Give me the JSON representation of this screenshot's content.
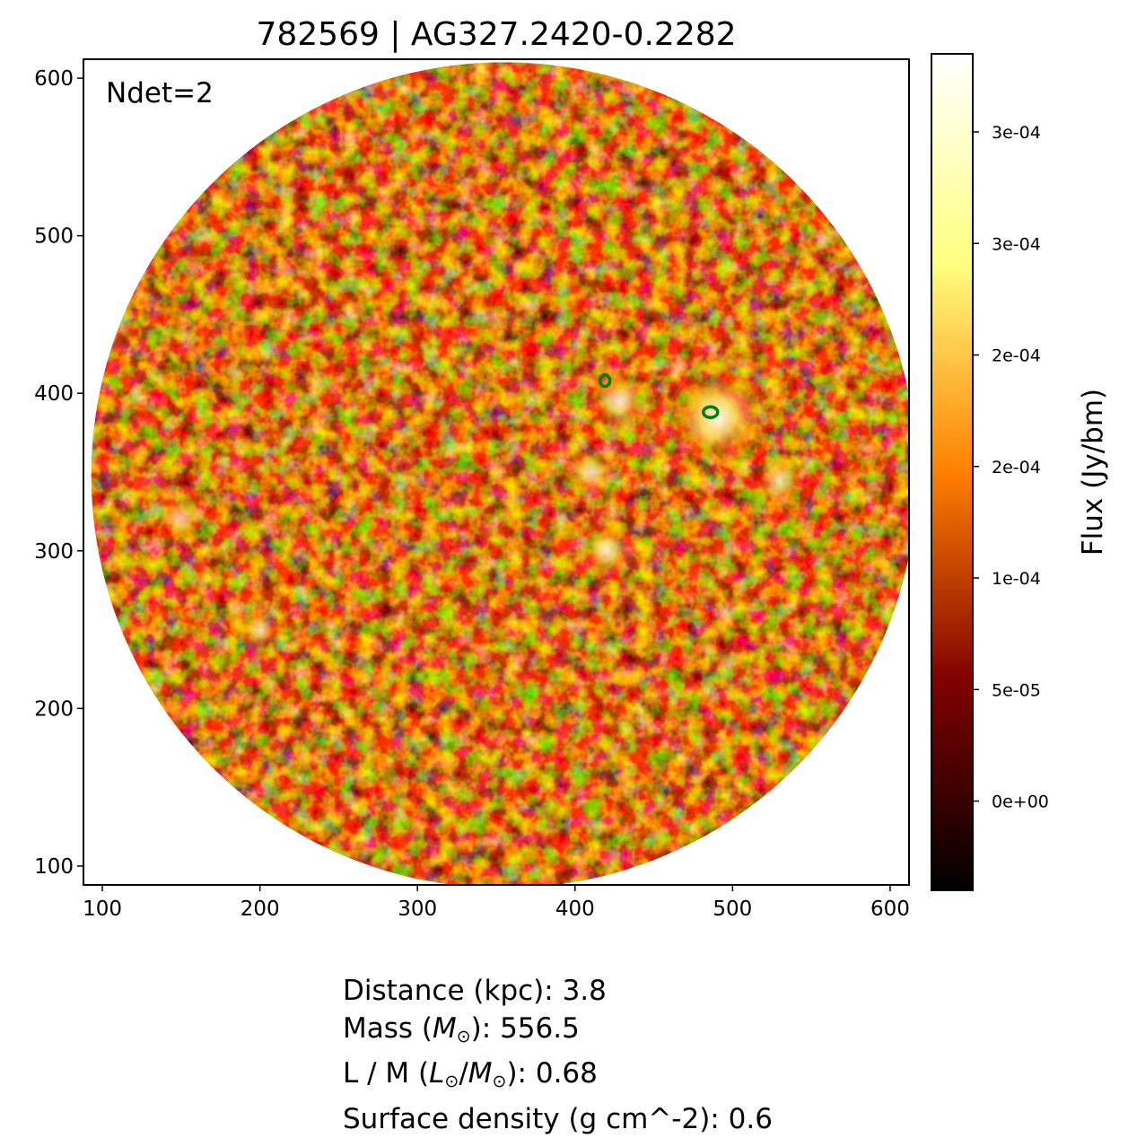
{
  "chart_data": {
    "type": "heatmap",
    "title": "782569 | AG327.2420-0.2282",
    "annotation": "Ndet=2",
    "xlim": [
      88,
      612
    ],
    "ylim": [
      88,
      612
    ],
    "x_ticks": [
      100,
      200,
      300,
      400,
      500,
      600
    ],
    "y_ticks": [
      100,
      200,
      300,
      400,
      500,
      600
    ],
    "image": {
      "shape": "circular field",
      "center": [
        355,
        348
      ],
      "radius": 262,
      "colormap": "afmhot"
    },
    "detections": [
      {
        "x": 419,
        "y": 408
      },
      {
        "x": 486,
        "y": 388
      }
    ],
    "bright_regions": [
      {
        "x": 490,
        "y": 385,
        "peak": 0.00033
      },
      {
        "x": 428,
        "y": 395,
        "peak": 0.00016
      },
      {
        "x": 410,
        "y": 350,
        "peak": 0.00013
      },
      {
        "x": 420,
        "y": 300,
        "peak": 0.00014
      },
      {
        "x": 530,
        "y": 345,
        "peak": 0.00012
      },
      {
        "x": 150,
        "y": 320,
        "peak": 0.0001
      },
      {
        "x": 200,
        "y": 250,
        "peak": 0.0001
      }
    ],
    "colorbar": {
      "label": "Flux (Jy/bm)",
      "vmin": -4e-05,
      "vmax": 0.000335,
      "ticks": [
        {
          "value": 0.0,
          "label": "0e+00"
        },
        {
          "value": 5e-05,
          "label": "5e-05"
        },
        {
          "value": 0.0001,
          "label": "1e-04"
        },
        {
          "value": 0.00015,
          "label": "2e-04"
        },
        {
          "value": 0.0002,
          "label": "2e-04"
        },
        {
          "value": 0.00025,
          "label": "3e-04"
        },
        {
          "value": 0.0003,
          "label": "3e-04"
        }
      ]
    },
    "colors": {
      "contour": "#007f00",
      "frame": "#000000"
    }
  },
  "info": {
    "distance": "Distance (kpc): 3.8",
    "mass_prefix": "Mass (",
    "mass_sym": "M",
    "mass_suffix": "): 556.5",
    "lm_prefix": "L / M (",
    "lm_sym1": "L",
    "lm_mid": "/",
    "lm_sym2": "M",
    "lm_suffix": "): 0.68",
    "sun": "⊙",
    "surface_density": "Surface density (g cm^-2): 0.6"
  }
}
